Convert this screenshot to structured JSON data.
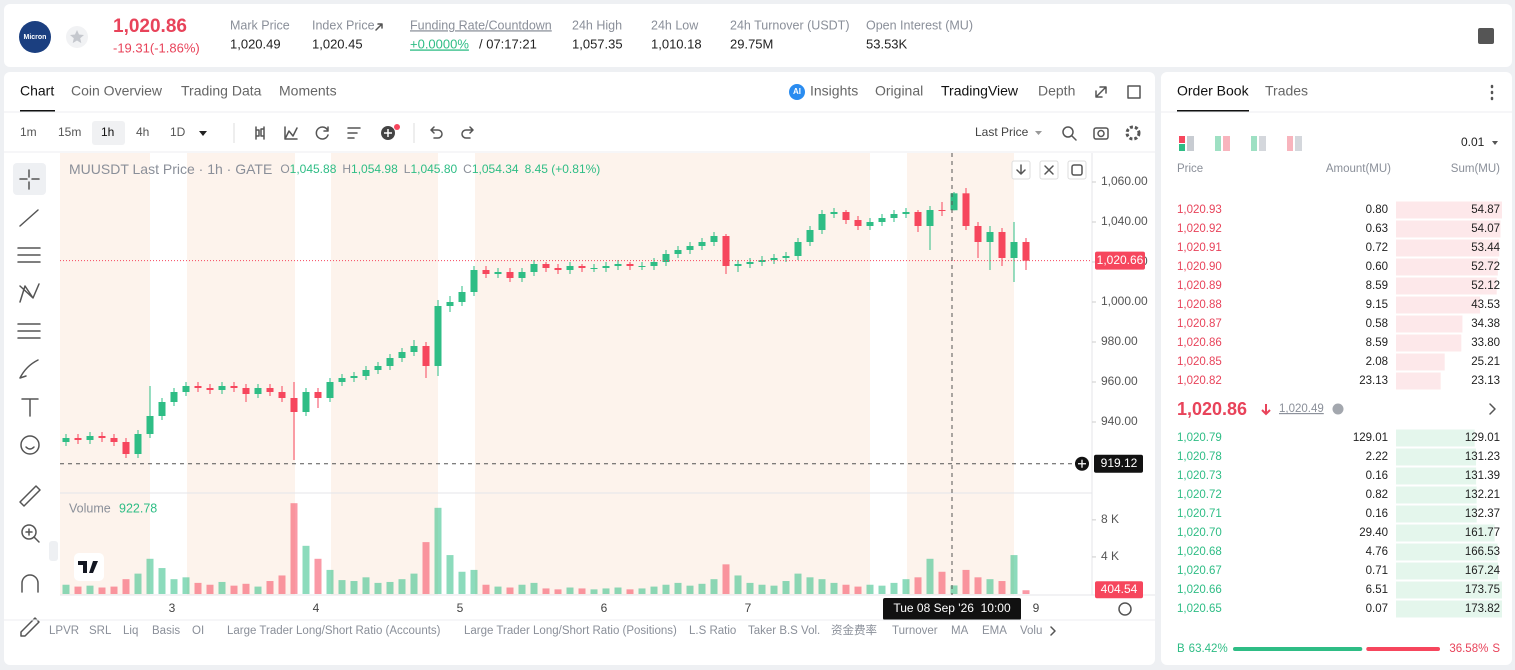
{
  "header": {
    "logo_text": "Micron",
    "last_price": "1,020.86",
    "change": "-19.31(-1.86%)",
    "stats": [
      {
        "label": "Mark Price",
        "value": "1,020.49"
      },
      {
        "label": "Index Price",
        "value": "1,020.45"
      },
      {
        "label": "Funding Rate/Countdown",
        "value": "+0.0000%",
        "extra": "/ 07:17:21"
      },
      {
        "label": "24h High",
        "value": "1,057.35"
      },
      {
        "label": "24h Low",
        "value": "1,010.18"
      },
      {
        "label": "24h Turnover (USDT)",
        "value": "29.75M"
      },
      {
        "label": "Open Interest (MU)",
        "value": "53.53K"
      }
    ]
  },
  "chart_tabs": [
    "Chart",
    "Coin Overview",
    "Trading Data",
    "Moments"
  ],
  "view_tabs": [
    "Insights",
    "Original",
    "TradingView",
    "Depth"
  ],
  "intervals": [
    "1m",
    "15m",
    "1h",
    "4h",
    "1D"
  ],
  "price_source": "Last Price",
  "indicators": [
    "LPVR",
    "SRL",
    "Liq",
    "Basis",
    "OI",
    "Large Trader Long/Short Ratio (Accounts)",
    "Large Trader Long/Short Ratio (Positions)",
    "L.S Ratio",
    "Taker B.S Vol.",
    "资金费率",
    "Turnover",
    "MA",
    "EMA",
    "Volu"
  ],
  "chart_data": {
    "type": "candlestick",
    "title": "MUUSDT Last Price · 1h · GATE",
    "ohlc_legend": [
      {
        "key": "O",
        "value": "1,045.88"
      },
      {
        "key": "H",
        "value": "1,054.98"
      },
      {
        "key": "L",
        "value": "1,045.80"
      },
      {
        "key": "C",
        "value": "1,054.34"
      }
    ],
    "change": "8.45 (+0.81%)",
    "up_color": "#2ebd85",
    "down_color": "#f6465d",
    "candles": [
      [
        930,
        934,
        928,
        932
      ],
      [
        932,
        934,
        929,
        931
      ],
      [
        931,
        935,
        929,
        933
      ],
      [
        933,
        935,
        930,
        932
      ],
      [
        932,
        934,
        928,
        930
      ],
      [
        930,
        932,
        922,
        924
      ],
      [
        924,
        936,
        922,
        934
      ],
      [
        934,
        958,
        932,
        943
      ],
      [
        943,
        952,
        941,
        950
      ],
      [
        950,
        957,
        948,
        955
      ],
      [
        955,
        960,
        953,
        958
      ],
      [
        958,
        960,
        955,
        957
      ],
      [
        957,
        959,
        954,
        956
      ],
      [
        956,
        960,
        954,
        958
      ],
      [
        958,
        960,
        955,
        957
      ],
      [
        957,
        959,
        950,
        954
      ],
      [
        954,
        959,
        952,
        957
      ],
      [
        957,
        959,
        953,
        955
      ],
      [
        955,
        958,
        950,
        952
      ],
      [
        952,
        960,
        921,
        945
      ],
      [
        945,
        957,
        943,
        955
      ],
      [
        955,
        957,
        947,
        952
      ],
      [
        952,
        962,
        950,
        960
      ],
      [
        960,
        964,
        958,
        962
      ],
      [
        962,
        965,
        960,
        963
      ],
      [
        963,
        968,
        961,
        966
      ],
      [
        966,
        970,
        964,
        968
      ],
      [
        968,
        974,
        966,
        972
      ],
      [
        972,
        977,
        970,
        975
      ],
      [
        975,
        981,
        973,
        978
      ],
      [
        978,
        980,
        962,
        968
      ],
      [
        968,
        1001,
        963,
        998
      ],
      [
        998,
        1003,
        995,
        1000
      ],
      [
        1000,
        1008,
        998,
        1005
      ],
      [
        1005,
        1018,
        1003,
        1016
      ],
      [
        1016,
        1018,
        1012,
        1014
      ],
      [
        1014,
        1017,
        1012,
        1015
      ],
      [
        1015,
        1017,
        1010,
        1012
      ],
      [
        1012,
        1017,
        1010,
        1015
      ],
      [
        1015,
        1021,
        1013,
        1019
      ],
      [
        1019,
        1020,
        1015,
        1017
      ],
      [
        1017,
        1019,
        1014,
        1016
      ],
      [
        1016,
        1020,
        1014,
        1018
      ],
      [
        1018,
        1019,
        1015,
        1017
      ],
      [
        1017,
        1019,
        1015,
        1017
      ],
      [
        1017,
        1020,
        1015,
        1018
      ],
      [
        1018,
        1021,
        1016,
        1019
      ],
      [
        1019,
        1020,
        1016,
        1018
      ],
      [
        1018,
        1020,
        1016,
        1018
      ],
      [
        1018,
        1022,
        1016,
        1020
      ],
      [
        1020,
        1026,
        1018,
        1024
      ],
      [
        1024,
        1028,
        1022,
        1026
      ],
      [
        1026,
        1030,
        1024,
        1028
      ],
      [
        1028,
        1032,
        1026,
        1030
      ],
      [
        1030,
        1035,
        1028,
        1033
      ],
      [
        1033,
        1034,
        1014,
        1018
      ],
      [
        1018,
        1021,
        1015,
        1019
      ],
      [
        1019,
        1022,
        1017,
        1020
      ],
      [
        1020,
        1023,
        1018,
        1021
      ],
      [
        1021,
        1024,
        1019,
        1022
      ],
      [
        1022,
        1025,
        1020,
        1023
      ],
      [
        1023,
        1032,
        1021,
        1030
      ],
      [
        1030,
        1038,
        1028,
        1036
      ],
      [
        1036,
        1046,
        1034,
        1044
      ],
      [
        1044,
        1047,
        1042,
        1045
      ],
      [
        1045,
        1046,
        1039,
        1041
      ],
      [
        1041,
        1043,
        1036,
        1038
      ],
      [
        1038,
        1042,
        1036,
        1040
      ],
      [
        1040,
        1044,
        1038,
        1042
      ],
      [
        1042,
        1046,
        1040,
        1044
      ],
      [
        1044,
        1047,
        1042,
        1045
      ],
      [
        1045,
        1046,
        1035,
        1038
      ],
      [
        1038,
        1048,
        1026,
        1046
      ],
      [
        1046,
        1050,
        1043,
        1045.88
      ],
      [
        1045.88,
        1054.98,
        1045.8,
        1054.34
      ],
      [
        1054.34,
        1057,
        1036,
        1038
      ],
      [
        1038,
        1040,
        1022,
        1030
      ],
      [
        1030,
        1038,
        1016,
        1035
      ],
      [
        1035,
        1037,
        1018,
        1022
      ],
      [
        1022,
        1040,
        1010,
        1030
      ],
      [
        1030,
        1032,
        1016,
        1020.66
      ]
    ],
    "ylim": [
      904.5,
      1074.5
    ],
    "yticks": [
      {
        "value": 1060,
        "label": "1,060.00"
      },
      {
        "value": 1040,
        "label": "1,040.00"
      },
      {
        "value": 1020,
        "label": "1,020.00"
      },
      {
        "value": 1000,
        "label": "1,000.00"
      },
      {
        "value": 980,
        "label": "980.00"
      },
      {
        "value": 960,
        "label": "960.00"
      },
      {
        "value": 940,
        "label": "940.00"
      }
    ],
    "last_price": {
      "value": 1020.66,
      "label": "1,020.66"
    },
    "crosshair_price": {
      "value": 919.12,
      "label": "919.12"
    },
    "crosshair_time": "Tue 08 Sep '26  10:00",
    "x_labels": [
      "3",
      "4",
      "5",
      "6",
      "7",
      "9"
    ],
    "volume": {
      "title": "Volume",
      "legend_value": "922.78",
      "values": [
        1000,
        800,
        900,
        700,
        800,
        1600,
        2200,
        3800,
        2800,
        1600,
        1800,
        1200,
        1000,
        1300,
        900,
        1100,
        800,
        1400,
        2000,
        9800,
        5200,
        3800,
        2600,
        1500,
        1400,
        1800,
        1200,
        1300,
        1600,
        2200,
        5600,
        9300,
        4200,
        2400,
        2600,
        1000,
        800,
        700,
        1000,
        1200,
        600,
        500,
        700,
        600,
        500,
        600,
        700,
        500,
        600,
        800,
        1000,
        1200,
        900,
        1100,
        1600,
        3200,
        2000,
        1200,
        1000,
        900,
        1400,
        2200,
        1800,
        1600,
        1200,
        1000,
        800,
        1000,
        900,
        1200,
        1600,
        1800,
        3800,
        2400,
        922.78,
        2600,
        1800,
        1600,
        1400,
        4200,
        404.54
      ],
      "ylim": [
        0,
        10900
      ],
      "yticks": [
        {
          "value": 8000,
          "label": "8 K"
        },
        {
          "value": 4000,
          "label": "4 K"
        }
      ]
    }
  },
  "order_book": {
    "tabs": [
      "Order Book",
      "Trades"
    ],
    "precision": "0.01",
    "columns": [
      "Price",
      "Amount(MU)",
      "Sum(MU)"
    ],
    "asks": [
      {
        "price": "1,020.93",
        "amount": "0.80",
        "sum": 54.87
      },
      {
        "price": "1,020.92",
        "amount": "0.63",
        "sum": 54.07
      },
      {
        "price": "1,020.91",
        "amount": "0.72",
        "sum": 53.44
      },
      {
        "price": "1,020.90",
        "amount": "0.60",
        "sum": 52.72
      },
      {
        "price": "1,020.89",
        "amount": "8.59",
        "sum": 52.12
      },
      {
        "price": "1,020.88",
        "amount": "9.15",
        "sum": 43.53
      },
      {
        "price": "1,020.87",
        "amount": "0.58",
        "sum": 34.38
      },
      {
        "price": "1,020.86",
        "amount": "8.59",
        "sum": {
          "value": 33.8,
          "label": "33.80"
        }
      },
      {
        "price": "1,020.85",
        "amount": "2.08",
        "sum": 25.21
      },
      {
        "price": "1,020.82",
        "amount": "23.13",
        "sum": 23.13
      }
    ],
    "mid_price": "1,020.86",
    "mark_price": "1,020.49",
    "bids": [
      {
        "price": "1,020.79",
        "amount": "129.01",
        "sum": 129.01
      },
      {
        "price": "1,020.78",
        "amount": "2.22",
        "sum": 131.23
      },
      {
        "price": "1,020.73",
        "amount": "0.16",
        "sum": 131.39
      },
      {
        "price": "1,020.72",
        "amount": "0.82",
        "sum": 132.21
      },
      {
        "price": "1,020.71",
        "amount": "0.16",
        "sum": 132.37
      },
      {
        "price": "1,020.70",
        "amount": "29.40",
        "sum": 161.77
      },
      {
        "price": "1,020.68",
        "amount": "4.76",
        "sum": 166.53
      },
      {
        "price": "1,020.67",
        "amount": "0.71",
        "sum": 167.24
      },
      {
        "price": "1,020.66",
        "amount": "6.51",
        "sum": 173.75
      },
      {
        "price": "1,020.65",
        "amount": "0.07",
        "sum": 173.82
      }
    ],
    "buy_key": "B",
    "buy": {
      "value": 63.42,
      "label": "63.42%"
    },
    "sell": {
      "value": 36.58,
      "label": "36.58%"
    },
    "sell_key": "S"
  }
}
